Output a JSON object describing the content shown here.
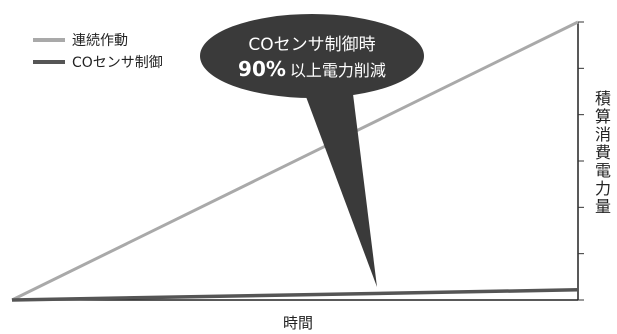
{
  "chart_data": {
    "type": "line",
    "title": "",
    "xlabel": "時間",
    "ylabel": "積算消費電力量",
    "xlim": [
      0,
      1
    ],
    "ylim": [
      0,
      6
    ],
    "grid": false,
    "legend_position": "top-left",
    "x": [
      0,
      1
    ],
    "series": [
      {
        "name": "連続作動",
        "values": [
          0,
          6.0
        ],
        "color": "#a9a9a9"
      },
      {
        "name": "COセンサ制御",
        "values": [
          0,
          0.22
        ],
        "color": "#555555"
      }
    ],
    "annotation": {
      "line1": "COセンサ制御時",
      "line2_bold": "90%",
      "line2_rest": "以上電力削減",
      "fill_color": "#3a3a3a",
      "text_color": "#ffffff"
    },
    "y_ticks": [
      0,
      1,
      2,
      3,
      4,
      5,
      6
    ]
  },
  "colors": {
    "axis": "#222222",
    "tick": "#333333"
  }
}
